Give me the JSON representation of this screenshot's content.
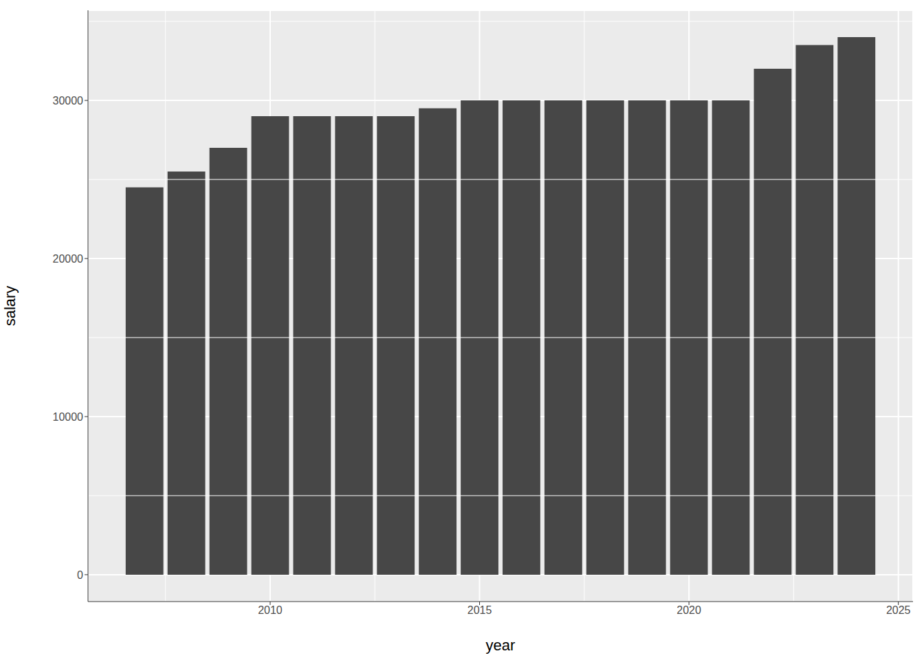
{
  "chart_data": {
    "type": "bar",
    "x_label": "year",
    "y_label": "salary",
    "x": [
      2007,
      2008,
      2009,
      2010,
      2011,
      2012,
      2013,
      2014,
      2015,
      2016,
      2017,
      2018,
      2019,
      2020,
      2021,
      2022,
      2023,
      2024
    ],
    "values": [
      24500,
      25500,
      27000,
      29000,
      29000,
      29000,
      29000,
      29500,
      30000,
      30000,
      30000,
      30000,
      30000,
      30000,
      30000,
      32000,
      33500,
      34000
    ],
    "color": "#474747",
    "xlim": [
      2005.65,
      2025.35
    ],
    "ylim": [
      -1700,
      35700
    ],
    "xticks": [
      2010,
      2015,
      2020,
      2025
    ],
    "yticks": [
      0,
      10000,
      20000,
      30000
    ],
    "grid": true
  }
}
